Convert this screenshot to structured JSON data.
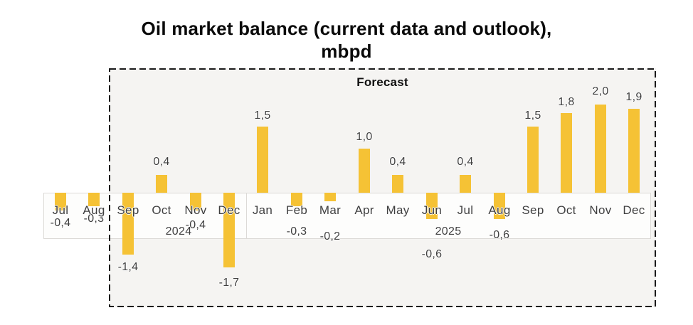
{
  "title": {
    "line1": "Oil market balance (current data and outlook),",
    "line2": "mbpd"
  },
  "forecast": {
    "label": "Forecast"
  },
  "colors": {
    "bar": "#f5c235",
    "forecast_box_bg": "#f5f4f2",
    "axis_line": "#dcdad7",
    "label_text": "#3f3f3f",
    "title_text": "#0a0a0a",
    "dashed_border": "#1a1a1a",
    "axis_strip_bg": "#fdfdfc"
  },
  "chart_data": {
    "type": "bar",
    "title": "Oil market balance (current data and outlook), mbpd",
    "unit": "mbpd",
    "decimal_separator": ",",
    "categories": [
      "Jul",
      "Aug",
      "Sep",
      "Oct",
      "Nov",
      "Dec",
      "Jan",
      "Feb",
      "Mar",
      "Apr",
      "May",
      "Jun",
      "Jul",
      "Aug",
      "Sep",
      "Oct",
      "Nov",
      "Dec"
    ],
    "values": [
      -0.4,
      -0.3,
      -1.4,
      0.4,
      -0.4,
      -1.7,
      1.5,
      -0.3,
      -0.2,
      1.0,
      0.4,
      -0.6,
      0.4,
      -0.6,
      1.5,
      1.8,
      2.0,
      1.9
    ],
    "value_labels": [
      "-0,4",
      "-0,3",
      "-1,4",
      "0,4",
      "-0,4",
      "-1,7",
      "1,5",
      "-0,3",
      "-0,2",
      "1,0",
      "0,4",
      "-0,6",
      "0,4",
      "-0,6",
      "1,5",
      "1,8",
      "2,0",
      "1,9"
    ],
    "year_groups": [
      {
        "label": "",
        "from": 0,
        "to": 2
      },
      {
        "label": "2024",
        "from": 2,
        "to": 6
      },
      {
        "label": "2025",
        "from": 6,
        "to": 18
      }
    ],
    "forecast_span": {
      "label": "Forecast",
      "from": 2,
      "to": 18
    },
    "separators": [
      6
    ],
    "label_dy": [
      0,
      0,
      0,
      0,
      3,
      4,
      3,
      18,
      32,
      2,
      0,
      32,
      0,
      5,
      3,
      3,
      0,
      2
    ],
    "ylim": [
      -2.2,
      2.8
    ],
    "gridlines": false,
    "legend": false,
    "xlabel": "",
    "ylabel": ""
  }
}
